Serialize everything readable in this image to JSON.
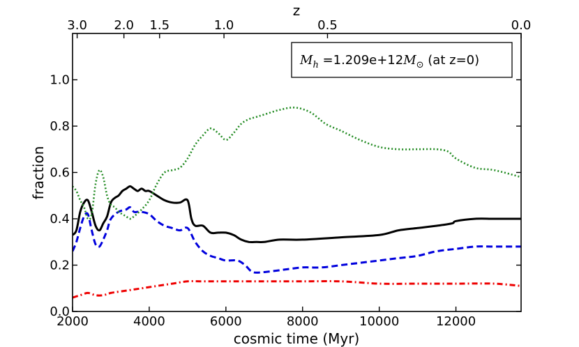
{
  "chart_data": {
    "type": "line",
    "xlabel": "cosmic time (Myr)",
    "ylabel": "fraction",
    "top_xlabel": "z",
    "xlim": [
      2000,
      13700
    ],
    "ylim": [
      0.0,
      1.2
    ],
    "x_ticks": [
      2000,
      4000,
      6000,
      8000,
      10000,
      12000
    ],
    "x_tick_labels": [
      "2000",
      "4000",
      "6000",
      "8000",
      "10000",
      "12000"
    ],
    "y_ticks": [
      0.0,
      0.2,
      0.4,
      0.6,
      0.8,
      1.0
    ],
    "y_tick_labels": [
      "0.0",
      "0.2",
      "0.4",
      "0.6",
      "0.8",
      "1.0"
    ],
    "top_ticks": [
      {
        "label": "3.0",
        "time": 2120
      },
      {
        "label": "2.0",
        "time": 3340
      },
      {
        "label": "1.5",
        "time": 4270
      },
      {
        "label": "1.0",
        "time": 5950
      },
      {
        "label": "0.5",
        "time": 8650
      },
      {
        "label": "0.0",
        "time": 13700
      }
    ],
    "annotation": {
      "math_symbol": "M",
      "math_sub": "h",
      "text": " =1.209e+12",
      "unit_symbol": "M",
      "unit_sub": "⊙",
      "suffix": " (at z=0)"
    },
    "series": [
      {
        "name": "solid-black",
        "color": "#000000",
        "style": "solid",
        "x": [
          2000,
          2100,
          2200,
          2300,
          2400,
          2500,
          2600,
          2700,
          2800,
          2900,
          3000,
          3100,
          3200,
          3300,
          3400,
          3500,
          3600,
          3700,
          3800,
          3900,
          4000,
          4200,
          4400,
          4600,
          4800,
          5000,
          5100,
          5200,
          5400,
          5600,
          5800,
          6000,
          6200,
          6400,
          6600,
          6800,
          7000,
          7400,
          8000,
          9000,
          10000,
          10500,
          11000,
          11500,
          11900,
          12000,
          12500,
          13000,
          13700
        ],
        "y": [
          0.33,
          0.35,
          0.43,
          0.47,
          0.48,
          0.43,
          0.37,
          0.35,
          0.38,
          0.41,
          0.47,
          0.49,
          0.5,
          0.52,
          0.53,
          0.54,
          0.53,
          0.52,
          0.53,
          0.52,
          0.52,
          0.5,
          0.48,
          0.47,
          0.47,
          0.48,
          0.4,
          0.37,
          0.37,
          0.34,
          0.34,
          0.34,
          0.33,
          0.31,
          0.3,
          0.3,
          0.3,
          0.31,
          0.31,
          0.32,
          0.33,
          0.35,
          0.36,
          0.37,
          0.38,
          0.39,
          0.4,
          0.4,
          0.4
        ]
      },
      {
        "name": "dashed-blue",
        "color": "#0000dd",
        "style": "dashed",
        "x": [
          2000,
          2100,
          2200,
          2300,
          2400,
          2500,
          2600,
          2700,
          2800,
          2900,
          3000,
          3200,
          3400,
          3500,
          3600,
          3700,
          3800,
          4000,
          4200,
          4400,
          4600,
          4800,
          5000,
          5200,
          5400,
          5600,
          5800,
          6000,
          6300,
          6500,
          6700,
          7000,
          7500,
          8000,
          8500,
          9000,
          9500,
          10000,
          10500,
          11000,
          11500,
          12000,
          12500,
          13000,
          13700
        ],
        "y": [
          0.26,
          0.3,
          0.36,
          0.41,
          0.42,
          0.35,
          0.29,
          0.28,
          0.31,
          0.35,
          0.4,
          0.43,
          0.44,
          0.45,
          0.43,
          0.43,
          0.43,
          0.42,
          0.39,
          0.37,
          0.36,
          0.35,
          0.36,
          0.3,
          0.26,
          0.24,
          0.23,
          0.22,
          0.22,
          0.2,
          0.17,
          0.17,
          0.18,
          0.19,
          0.19,
          0.2,
          0.21,
          0.22,
          0.23,
          0.24,
          0.26,
          0.27,
          0.28,
          0.28,
          0.28
        ]
      },
      {
        "name": "dotted-green",
        "color": "#228b22",
        "style": "dotted",
        "x": [
          2000,
          2100,
          2200,
          2300,
          2400,
          2500,
          2600,
          2700,
          2800,
          2900,
          3000,
          3100,
          3200,
          3300,
          3400,
          3500,
          3600,
          3800,
          4000,
          4200,
          4400,
          4600,
          4800,
          5000,
          5200,
          5400,
          5600,
          5800,
          6000,
          6200,
          6400,
          6600,
          6800,
          7000,
          7400,
          7800,
          8200,
          8600,
          9000,
          9500,
          10000,
          10500,
          11000,
          11500,
          11800,
          12000,
          12500,
          13000,
          13700
        ],
        "y": [
          0.54,
          0.52,
          0.48,
          0.45,
          0.4,
          0.42,
          0.55,
          0.61,
          0.58,
          0.5,
          0.46,
          0.45,
          0.43,
          0.42,
          0.41,
          0.4,
          0.41,
          0.44,
          0.48,
          0.55,
          0.6,
          0.61,
          0.62,
          0.66,
          0.72,
          0.76,
          0.79,
          0.77,
          0.74,
          0.77,
          0.81,
          0.83,
          0.84,
          0.85,
          0.87,
          0.88,
          0.86,
          0.81,
          0.78,
          0.74,
          0.71,
          0.7,
          0.7,
          0.7,
          0.69,
          0.66,
          0.62,
          0.61,
          0.58
        ]
      },
      {
        "name": "dashdot-red",
        "color": "#ee0000",
        "style": "dashdot",
        "x": [
          2000,
          2200,
          2400,
          2600,
          2800,
          3000,
          3400,
          3800,
          4200,
          4600,
          5000,
          5400,
          6000,
          6400,
          6800,
          7200,
          8000,
          9000,
          10000,
          11000,
          12000,
          13000,
          13700
        ],
        "y": [
          0.06,
          0.07,
          0.08,
          0.07,
          0.07,
          0.08,
          0.09,
          0.1,
          0.11,
          0.12,
          0.13,
          0.13,
          0.13,
          0.13,
          0.13,
          0.13,
          0.13,
          0.13,
          0.12,
          0.12,
          0.12,
          0.12,
          0.11
        ]
      }
    ]
  }
}
